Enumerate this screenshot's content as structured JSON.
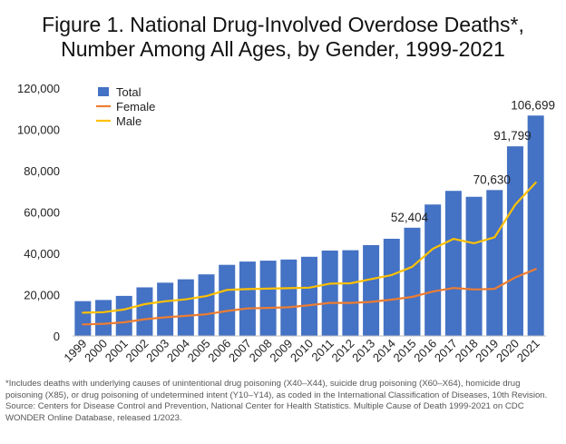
{
  "title_line1": "Figure 1. National Drug-Involved Overdose Deaths*,",
  "title_line2": "Number Among All Ages, by Gender, 1999-2021",
  "footnote": [
    "*Includes deaths with underlying causes of unintentional drug poisoning (X40–X44), suicide drug poisoning (X60–X64), homicide drug",
    "poisoning (X85), or drug poisoning of undetermined intent (Y10–Y14), as coded in the International Classification of Diseases, 10th Revision.",
    "Source: Centers for Disease Control and Prevention, National Center for Health Statistics. Multiple Cause of Death 1999-2021 on CDC",
    "WONDER Online Database, released 1/2023."
  ],
  "chart_data": {
    "type": "bar",
    "categories": [
      "1999",
      "2000",
      "2001",
      "2002",
      "2003",
      "2004",
      "2005",
      "2006",
      "2007",
      "2008",
      "2009",
      "2010",
      "2011",
      "2012",
      "2013",
      "2014",
      "2015",
      "2016",
      "2017",
      "2018",
      "2019",
      "2020",
      "2021"
    ],
    "ylim": [
      0,
      120000
    ],
    "yticks": [
      0,
      20000,
      40000,
      60000,
      80000,
      100000,
      120000
    ],
    "ytick_labels": [
      "0",
      "20,000",
      "40,000",
      "60,000",
      "80,000",
      "100,000",
      "120,000"
    ],
    "legend_position": "top-left",
    "grid": false,
    "series": [
      {
        "name": "Total",
        "kind": "bar",
        "color": "#4472c4",
        "values": [
          16849,
          17415,
          19394,
          23518,
          25785,
          27424,
          29813,
          34425,
          36010,
          36450,
          37004,
          38329,
          41340,
          41502,
          43982,
          47055,
          52404,
          63632,
          70237,
          67367,
          70630,
          91799,
          106699
        ]
      },
      {
        "name": "Female",
        "kind": "line",
        "color": "#ed7d31",
        "values": [
          5591,
          5900,
          6600,
          8100,
          9000,
          9700,
          10500,
          12100,
          13300,
          13600,
          13900,
          14900,
          16000,
          16000,
          16500,
          17600,
          18900,
          21500,
          23200,
          22500,
          22800,
          28300,
          32400
        ]
      },
      {
        "name": "Male",
        "kind": "line",
        "color": "#ffc000",
        "values": [
          11258,
          11500,
          12800,
          15400,
          16800,
          17700,
          19300,
          22300,
          22700,
          22900,
          23100,
          23400,
          25300,
          25500,
          27500,
          29500,
          33500,
          42200,
          47000,
          44900,
          47800,
          63500,
          74300
        ]
      }
    ],
    "data_labels": [
      {
        "category": "2015",
        "text": "52,404"
      },
      {
        "category": "2019",
        "text": "70,630"
      },
      {
        "category": "2020",
        "text": "91,799"
      },
      {
        "category": "2021",
        "text": "106,699"
      }
    ]
  }
}
